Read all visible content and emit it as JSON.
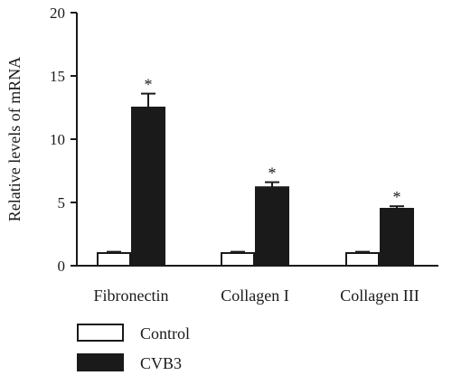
{
  "chart_data": {
    "type": "bar",
    "categories": [
      "Fibronectin",
      "Collagen I",
      "Collagen III"
    ],
    "series": [
      {
        "name": "Control",
        "values": [
          1.0,
          1.0,
          1.0
        ],
        "errors": [
          0.1,
          0.1,
          0.1
        ],
        "fill": "#ffffff"
      },
      {
        "name": "CVB3",
        "values": [
          12.5,
          6.2,
          4.5
        ],
        "errors": [
          1.1,
          0.4,
          0.2
        ],
        "fill": "#1a1a1a"
      }
    ],
    "significance": [
      "*",
      "*",
      "*"
    ],
    "ylabel": "Relative levels of mRNA",
    "xlabel": "",
    "ylim": [
      0,
      20
    ],
    "yticks": [
      0,
      5,
      10,
      15,
      20
    ],
    "legend_position": "bottom-left",
    "grid": false
  }
}
